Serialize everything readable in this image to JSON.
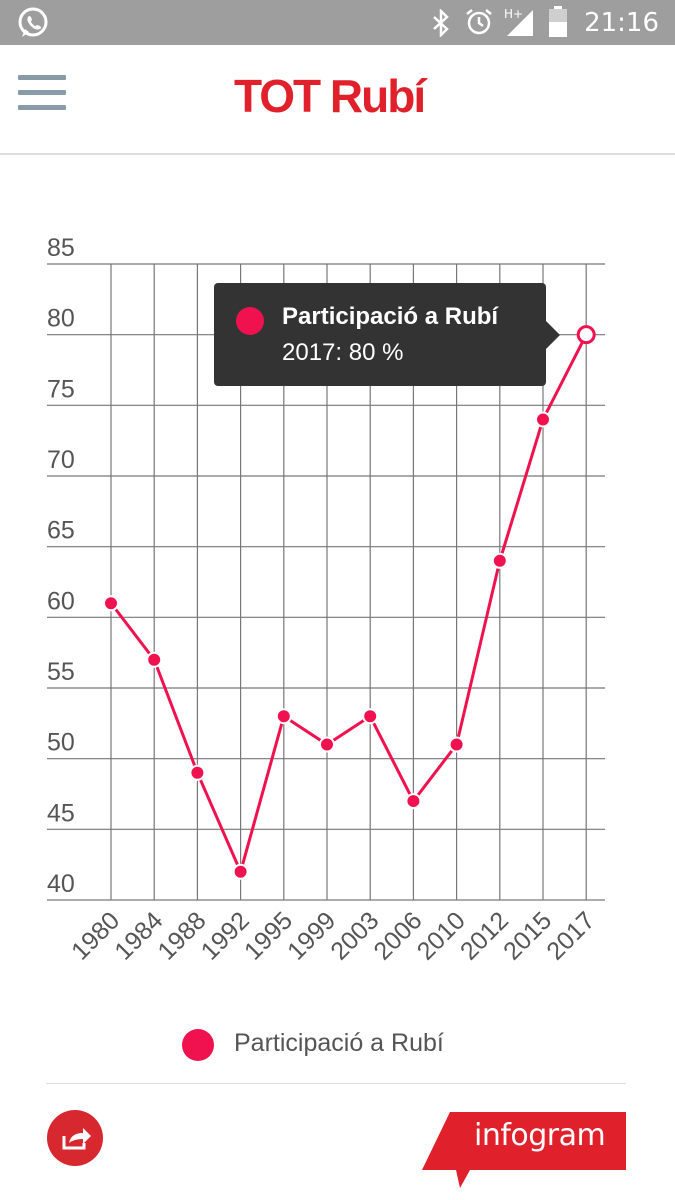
{
  "status_bar": {
    "time": "21:16",
    "network": "H+",
    "icons": [
      "whatsapp-icon",
      "bluetooth-icon",
      "alarm-icon",
      "signal-icon",
      "battery-icon"
    ]
  },
  "app_bar": {
    "logo_text": "TOT Rubí",
    "logo_color": "#e0202a",
    "menu_icon": "hamburger-menu-icon"
  },
  "chart_data": {
    "type": "line",
    "categories": [
      "1980",
      "1984",
      "1988",
      "1992",
      "1995",
      "1999",
      "2003",
      "2006",
      "2010",
      "2012",
      "2015",
      "2017"
    ],
    "series": [
      {
        "name": "Participació a Rubí",
        "values": [
          61,
          57,
          49,
          42,
          53,
          51,
          53,
          47,
          51,
          64,
          74,
          80
        ],
        "color": "#f0124e"
      }
    ],
    "ylim": [
      40,
      85
    ],
    "yticks": [
      "85",
      "80",
      "75",
      "70",
      "65",
      "60",
      "55",
      "50",
      "45",
      "40"
    ],
    "grid": true,
    "legend_position": "bottom-center",
    "tooltip": {
      "series": "Participació a Rubí",
      "text": "2017: 80 %",
      "highlighted_index": 11
    }
  },
  "legend": {
    "label": "Participació a Rubí"
  },
  "footer": {
    "share_icon": "share-icon",
    "brand_label": "infogram",
    "brand_color": "#e0202a"
  }
}
